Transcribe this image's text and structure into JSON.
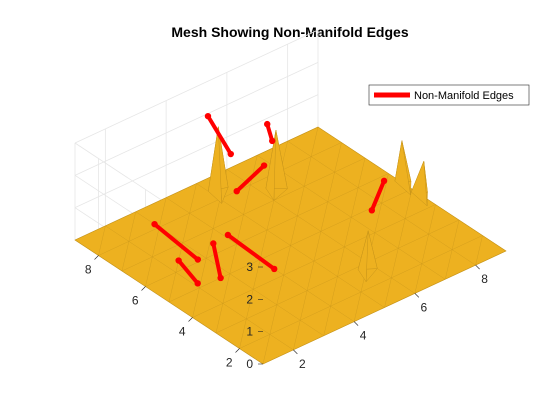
{
  "chart_data": {
    "type": "3d-mesh",
    "title": "Mesh Showing Non-Manifold Edges",
    "xlabel": "",
    "ylabel": "",
    "zlabel": "",
    "x_ticks": [
      2,
      4,
      6,
      8
    ],
    "y_ticks": [
      2,
      4,
      6,
      8
    ],
    "z_ticks": [
      0,
      1,
      2,
      3
    ],
    "xlim": [
      1,
      9
    ],
    "ylim": [
      1,
      9
    ],
    "zlim": [
      0,
      3
    ],
    "grid": true,
    "legend": {
      "placement": "top-right",
      "entries": [
        "Non-Manifold Edges"
      ]
    },
    "colors": {
      "surface": "#EDB120",
      "surface_edge": "#C8951A",
      "edges": "#FF0000",
      "grid": "#E6E6E6",
      "axis": "#262626"
    },
    "surface_z": 0,
    "spikes": [
      {
        "base": [
          [
            6.0,
            7.0
          ],
          [
            6.6,
            7.2
          ],
          [
            6.2,
            7.6
          ]
        ],
        "apex": [
          6.3,
          7.3,
          1.9
        ]
      },
      {
        "base": [
          [
            4.9,
            7.8
          ],
          [
            5.5,
            8.3
          ],
          [
            5.0,
            8.5
          ]
        ],
        "apex": [
          5.1,
          8.2,
          2.1
        ]
      },
      {
        "base": [
          [
            8.8,
            4.8
          ],
          [
            9.2,
            5.3
          ],
          [
            8.9,
            5.6
          ]
        ],
        "apex": [
          8.9,
          5.3,
          1.4
        ]
      },
      {
        "base": [
          [
            8.8,
            4.1
          ],
          [
            9.2,
            4.6
          ],
          [
            8.9,
            4.9
          ]
        ],
        "apex": [
          9.0,
          4.5,
          1.1
        ]
      },
      {
        "base": [
          [
            5.4,
            2.3
          ],
          [
            6.0,
            2.6
          ],
          [
            5.6,
            2.9
          ]
        ],
        "apex": [
          5.7,
          2.6,
          1.3
        ]
      }
    ],
    "non_manifold_edges": [
      {
        "from": [
          4.7,
          6.9,
          0.9
        ],
        "to": [
          5.6,
          6.9,
          1.3
        ]
      },
      {
        "from": [
          5.2,
          7.8,
          1.4
        ],
        "to": [
          5.3,
          8.9,
          2.0
        ]
      },
      {
        "from": [
          6.1,
          7.2,
          1.7
        ],
        "to": [
          6.4,
          7.8,
          1.8
        ]
      },
      {
        "from": [
          7.6,
          4.9,
          0.0
        ],
        "to": [
          8.7,
          5.8,
          0.0
        ]
      },
      {
        "from": [
          2.8,
          6.1,
          0.0
        ],
        "to": [
          3.0,
          8.2,
          0.0
        ]
      },
      {
        "from": [
          2.7,
          5.0,
          0.0
        ],
        "to": [
          3.0,
          5.7,
          0.6
        ]
      },
      {
        "from": [
          2.1,
          5.2,
          0.0
        ],
        "to": [
          2.4,
          6.4,
          0.0
        ]
      },
      {
        "from": [
          4.0,
          4.4,
          0.0
        ],
        "to": [
          4.1,
          6.5,
          0.0
        ]
      }
    ]
  }
}
